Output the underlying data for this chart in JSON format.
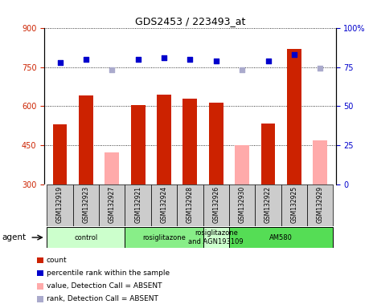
{
  "title": "GDS2453 / 223493_at",
  "samples": [
    "GSM132919",
    "GSM132923",
    "GSM132927",
    "GSM132921",
    "GSM132924",
    "GSM132928",
    "GSM132926",
    "GSM132930",
    "GSM132922",
    "GSM132925",
    "GSM132929"
  ],
  "bar_values": [
    530,
    640,
    null,
    605,
    645,
    630,
    615,
    null,
    535,
    820,
    null
  ],
  "bar_absent_values": [
    null,
    null,
    425,
    null,
    null,
    null,
    null,
    450,
    null,
    null,
    470
  ],
  "percentile_present": [
    78,
    80,
    null,
    80,
    81,
    80,
    79,
    null,
    79,
    83,
    null
  ],
  "percentile_absent": [
    null,
    null,
    73,
    null,
    null,
    null,
    null,
    73,
    null,
    null,
    74
  ],
  "ylim_left": [
    300,
    900
  ],
  "ylim_right": [
    0,
    100
  ],
  "yticks_left": [
    300,
    450,
    600,
    750,
    900
  ],
  "yticks_right": [
    0,
    25,
    50,
    75,
    100
  ],
  "groups": [
    {
      "label": "control",
      "start": 0,
      "end": 3,
      "color": "#ccffcc"
    },
    {
      "label": "rosiglitazone",
      "start": 3,
      "end": 6,
      "color": "#88ee88"
    },
    {
      "label": "rosiglitazone\nand AGN193109",
      "start": 6,
      "end": 7,
      "color": "#ccffcc"
    },
    {
      "label": "AM580",
      "start": 7,
      "end": 11,
      "color": "#55dd55"
    }
  ],
  "bar_color_present": "#cc2200",
  "bar_color_absent": "#ffaaaa",
  "dot_color_present": "#0000cc",
  "dot_color_absent": "#aaaacc",
  "bar_width": 0.55,
  "legend_items": [
    {
      "color": "#cc2200",
      "label": "count"
    },
    {
      "color": "#0000cc",
      "label": "percentile rank within the sample"
    },
    {
      "color": "#ffaaaa",
      "label": "value, Detection Call = ABSENT"
    },
    {
      "color": "#aaaacc",
      "label": "rank, Detection Call = ABSENT"
    }
  ],
  "sample_box_color": "#cccccc",
  "gridline_color": "black",
  "gridline_style": ":"
}
